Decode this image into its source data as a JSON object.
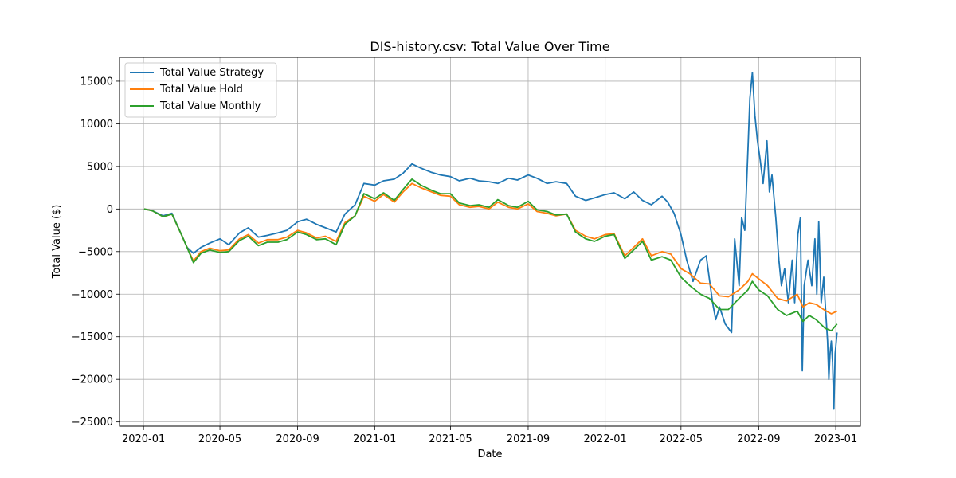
{
  "chart_data": {
    "type": "line",
    "title": "DIS-history.csv: Total Value Over Time",
    "xlabel": "Date",
    "ylabel": "Total Value ($)",
    "xlim": [
      "2019-11-24",
      "2023-02-09"
    ],
    "ylim": [
      -25500,
      17800
    ],
    "x_ticks": [
      "2020-01",
      "2020-05",
      "2020-09",
      "2021-01",
      "2021-05",
      "2021-09",
      "2022-01",
      "2022-05",
      "2022-09",
      "2023-01"
    ],
    "y_ticks": [
      -25000,
      -20000,
      -15000,
      -10000,
      -5000,
      0,
      5000,
      10000,
      15000
    ],
    "grid": true,
    "legend_position": "top-left",
    "series": [
      {
        "name": "Total Value Strategy",
        "color": "#1f77b4",
        "points": [
          [
            "2020-01-02",
            0
          ],
          [
            "2020-01-15",
            -200
          ],
          [
            "2020-02-01",
            -800
          ],
          [
            "2020-02-15",
            -500
          ],
          [
            "2020-03-01",
            -3000
          ],
          [
            "2020-03-10",
            -4500
          ],
          [
            "2020-03-20",
            -5200
          ],
          [
            "2020-04-01",
            -4500
          ],
          [
            "2020-04-15",
            -4000
          ],
          [
            "2020-05-01",
            -3500
          ],
          [
            "2020-05-15",
            -4200
          ],
          [
            "2020-06-01",
            -2800
          ],
          [
            "2020-06-15",
            -2200
          ],
          [
            "2020-07-01",
            -3300
          ],
          [
            "2020-07-15",
            -3100
          ],
          [
            "2020-08-01",
            -2800
          ],
          [
            "2020-08-15",
            -2500
          ],
          [
            "2020-09-01",
            -1500
          ],
          [
            "2020-09-15",
            -1200
          ],
          [
            "2020-10-01",
            -1800
          ],
          [
            "2020-10-15",
            -2200
          ],
          [
            "2020-11-01",
            -2700
          ],
          [
            "2020-11-15",
            -600
          ],
          [
            "2020-12-01",
            500
          ],
          [
            "2020-12-15",
            3000
          ],
          [
            "2021-01-01",
            2800
          ],
          [
            "2021-01-15",
            3300
          ],
          [
            "2021-02-01",
            3500
          ],
          [
            "2021-02-15",
            4200
          ],
          [
            "2021-03-01",
            5300
          ],
          [
            "2021-03-15",
            4800
          ],
          [
            "2021-04-01",
            4300
          ],
          [
            "2021-04-15",
            4000
          ],
          [
            "2021-05-01",
            3800
          ],
          [
            "2021-05-15",
            3300
          ],
          [
            "2021-06-01",
            3600
          ],
          [
            "2021-06-15",
            3300
          ],
          [
            "2021-07-01",
            3200
          ],
          [
            "2021-07-15",
            3000
          ],
          [
            "2021-08-01",
            3600
          ],
          [
            "2021-08-15",
            3400
          ],
          [
            "2021-09-01",
            4000
          ],
          [
            "2021-09-15",
            3600
          ],
          [
            "2021-10-01",
            3000
          ],
          [
            "2021-10-15",
            3200
          ],
          [
            "2021-11-01",
            3000
          ],
          [
            "2021-11-15",
            1500
          ],
          [
            "2021-12-01",
            1000
          ],
          [
            "2021-12-15",
            1300
          ],
          [
            "2022-01-01",
            1700
          ],
          [
            "2022-01-15",
            1900
          ],
          [
            "2022-02-01",
            1200
          ],
          [
            "2022-02-15",
            2000
          ],
          [
            "2022-03-01",
            1000
          ],
          [
            "2022-03-15",
            500
          ],
          [
            "2022-04-01",
            1500
          ],
          [
            "2022-04-10",
            800
          ],
          [
            "2022-04-20",
            -500
          ],
          [
            "2022-05-01",
            -3000
          ],
          [
            "2022-05-10",
            -6000
          ],
          [
            "2022-05-20",
            -8500
          ],
          [
            "2022-06-01",
            -6000
          ],
          [
            "2022-06-10",
            -5500
          ],
          [
            "2022-06-20",
            -11000
          ],
          [
            "2022-06-25",
            -13000
          ],
          [
            "2022-07-01",
            -11500
          ],
          [
            "2022-07-10",
            -13500
          ],
          [
            "2022-07-20",
            -14500
          ],
          [
            "2022-07-25",
            -3500
          ],
          [
            "2022-08-01",
            -9000
          ],
          [
            "2022-08-05",
            -1000
          ],
          [
            "2022-08-10",
            -2500
          ],
          [
            "2022-08-15",
            7000
          ],
          [
            "2022-08-18",
            13000
          ],
          [
            "2022-08-22",
            16000
          ],
          [
            "2022-08-26",
            11000
          ],
          [
            "2022-08-30",
            8000
          ],
          [
            "2022-09-03",
            6000
          ],
          [
            "2022-09-08",
            3000
          ],
          [
            "2022-09-14",
            8000
          ],
          [
            "2022-09-18",
            2000
          ],
          [
            "2022-09-22",
            4000
          ],
          [
            "2022-09-28",
            -1000
          ],
          [
            "2022-10-03",
            -6000
          ],
          [
            "2022-10-07",
            -9000
          ],
          [
            "2022-10-12",
            -7000
          ],
          [
            "2022-10-18",
            -11000
          ],
          [
            "2022-10-24",
            -6000
          ],
          [
            "2022-10-28",
            -11000
          ],
          [
            "2022-11-02",
            -3000
          ],
          [
            "2022-11-06",
            -1000
          ],
          [
            "2022-11-09",
            -19000
          ],
          [
            "2022-11-12",
            -9000
          ],
          [
            "2022-11-18",
            -6000
          ],
          [
            "2022-11-24",
            -9000
          ],
          [
            "2022-11-29",
            -3500
          ],
          [
            "2022-12-02",
            -10000
          ],
          [
            "2022-12-05",
            -1500
          ],
          [
            "2022-12-09",
            -11000
          ],
          [
            "2022-12-13",
            -8000
          ],
          [
            "2022-12-16",
            -12000
          ],
          [
            "2022-12-19",
            -15500
          ],
          [
            "2022-12-21",
            -20000
          ],
          [
            "2022-12-23",
            -17000
          ],
          [
            "2022-12-25",
            -15500
          ],
          [
            "2022-12-27",
            -18000
          ],
          [
            "2022-12-29",
            -23500
          ],
          [
            "2022-12-31",
            -17000
          ],
          [
            "2023-01-03",
            -14500
          ]
        ]
      },
      {
        "name": "Total Value Hold",
        "color": "#ff7f0e",
        "points": [
          [
            "2020-01-02",
            0
          ],
          [
            "2020-01-15",
            -200
          ],
          [
            "2020-02-01",
            -900
          ],
          [
            "2020-02-15",
            -600
          ],
          [
            "2020-03-01",
            -3000
          ],
          [
            "2020-03-10",
            -4500
          ],
          [
            "2020-03-20",
            -6100
          ],
          [
            "2020-04-01",
            -5000
          ],
          [
            "2020-04-15",
            -4600
          ],
          [
            "2020-05-01",
            -4900
          ],
          [
            "2020-05-15",
            -4800
          ],
          [
            "2020-06-01",
            -3500
          ],
          [
            "2020-06-15",
            -3000
          ],
          [
            "2020-07-01",
            -4000
          ],
          [
            "2020-07-15",
            -3600
          ],
          [
            "2020-08-01",
            -3600
          ],
          [
            "2020-08-15",
            -3300
          ],
          [
            "2020-09-01",
            -2500
          ],
          [
            "2020-09-15",
            -2800
          ],
          [
            "2020-10-01",
            -3400
          ],
          [
            "2020-10-15",
            -3200
          ],
          [
            "2020-11-01",
            -3800
          ],
          [
            "2020-11-15",
            -1600
          ],
          [
            "2020-12-01",
            -800
          ],
          [
            "2020-12-15",
            1500
          ],
          [
            "2021-01-01",
            900
          ],
          [
            "2021-01-15",
            1700
          ],
          [
            "2021-02-01",
            800
          ],
          [
            "2021-02-15",
            2000
          ],
          [
            "2021-03-01",
            3000
          ],
          [
            "2021-03-15",
            2500
          ],
          [
            "2021-04-01",
            2000
          ],
          [
            "2021-04-15",
            1600
          ],
          [
            "2021-05-01",
            1500
          ],
          [
            "2021-05-15",
            500
          ],
          [
            "2021-06-01",
            200
          ],
          [
            "2021-06-15",
            300
          ],
          [
            "2021-07-01",
            0
          ],
          [
            "2021-07-15",
            800
          ],
          [
            "2021-08-01",
            200
          ],
          [
            "2021-08-15",
            0
          ],
          [
            "2021-09-01",
            600
          ],
          [
            "2021-09-15",
            -300
          ],
          [
            "2021-10-01",
            -500
          ],
          [
            "2021-10-15",
            -800
          ],
          [
            "2021-11-01",
            -600
          ],
          [
            "2021-11-15",
            -2500
          ],
          [
            "2021-12-01",
            -3200
          ],
          [
            "2021-12-15",
            -3500
          ],
          [
            "2022-01-01",
            -3000
          ],
          [
            "2022-01-15",
            -2900
          ],
          [
            "2022-02-01",
            -5500
          ],
          [
            "2022-02-15",
            -4500
          ],
          [
            "2022-03-01",
            -3500
          ],
          [
            "2022-03-15",
            -5500
          ],
          [
            "2022-04-01",
            -5000
          ],
          [
            "2022-04-15",
            -5300
          ],
          [
            "2022-05-01",
            -7000
          ],
          [
            "2022-05-15",
            -7600
          ],
          [
            "2022-06-01",
            -8700
          ],
          [
            "2022-06-15",
            -8800
          ],
          [
            "2022-07-01",
            -10200
          ],
          [
            "2022-07-15",
            -10300
          ],
          [
            "2022-08-01",
            -9500
          ],
          [
            "2022-08-15",
            -8500
          ],
          [
            "2022-08-22",
            -7600
          ],
          [
            "2022-09-01",
            -8200
          ],
          [
            "2022-09-15",
            -9000
          ],
          [
            "2022-10-01",
            -10500
          ],
          [
            "2022-10-15",
            -10800
          ],
          [
            "2022-11-01",
            -10000
          ],
          [
            "2022-11-10",
            -11500
          ],
          [
            "2022-11-20",
            -11000
          ],
          [
            "2022-12-01",
            -11200
          ],
          [
            "2022-12-15",
            -11900
          ],
          [
            "2022-12-25",
            -12300
          ],
          [
            "2023-01-03",
            -12000
          ]
        ]
      },
      {
        "name": "Total Value Monthly",
        "color": "#2ca02c",
        "points": [
          [
            "2020-01-02",
            0
          ],
          [
            "2020-01-15",
            -200
          ],
          [
            "2020-02-01",
            -900
          ],
          [
            "2020-02-15",
            -600
          ],
          [
            "2020-03-01",
            -3000
          ],
          [
            "2020-03-10",
            -4500
          ],
          [
            "2020-03-20",
            -6300
          ],
          [
            "2020-04-01",
            -5200
          ],
          [
            "2020-04-15",
            -4800
          ],
          [
            "2020-05-01",
            -5100
          ],
          [
            "2020-05-15",
            -5000
          ],
          [
            "2020-06-01",
            -3700
          ],
          [
            "2020-06-15",
            -3200
          ],
          [
            "2020-07-01",
            -4300
          ],
          [
            "2020-07-15",
            -3900
          ],
          [
            "2020-08-01",
            -3900
          ],
          [
            "2020-08-15",
            -3600
          ],
          [
            "2020-09-01",
            -2700
          ],
          [
            "2020-09-15",
            -3000
          ],
          [
            "2020-10-01",
            -3600
          ],
          [
            "2020-10-15",
            -3500
          ],
          [
            "2020-11-01",
            -4200
          ],
          [
            "2020-11-15",
            -1800
          ],
          [
            "2020-12-01",
            -800
          ],
          [
            "2020-12-15",
            1800
          ],
          [
            "2021-01-01",
            1200
          ],
          [
            "2021-01-15",
            1900
          ],
          [
            "2021-02-01",
            1000
          ],
          [
            "2021-02-15",
            2300
          ],
          [
            "2021-03-01",
            3500
          ],
          [
            "2021-03-15",
            2800
          ],
          [
            "2021-04-01",
            2200
          ],
          [
            "2021-04-15",
            1800
          ],
          [
            "2021-05-01",
            1800
          ],
          [
            "2021-05-15",
            700
          ],
          [
            "2021-06-01",
            400
          ],
          [
            "2021-06-15",
            500
          ],
          [
            "2021-07-01",
            200
          ],
          [
            "2021-07-15",
            1100
          ],
          [
            "2021-08-01",
            400
          ],
          [
            "2021-08-15",
            200
          ],
          [
            "2021-09-01",
            900
          ],
          [
            "2021-09-15",
            -100
          ],
          [
            "2021-10-01",
            -300
          ],
          [
            "2021-10-15",
            -700
          ],
          [
            "2021-11-01",
            -600
          ],
          [
            "2021-11-15",
            -2700
          ],
          [
            "2021-12-01",
            -3500
          ],
          [
            "2021-12-15",
            -3800
          ],
          [
            "2022-01-01",
            -3200
          ],
          [
            "2022-01-15",
            -3000
          ],
          [
            "2022-02-01",
            -5800
          ],
          [
            "2022-02-15",
            -4800
          ],
          [
            "2022-03-01",
            -3800
          ],
          [
            "2022-03-15",
            -6000
          ],
          [
            "2022-04-01",
            -5600
          ],
          [
            "2022-04-15",
            -6000
          ],
          [
            "2022-05-01",
            -8000
          ],
          [
            "2022-05-15",
            -9000
          ],
          [
            "2022-06-01",
            -10000
          ],
          [
            "2022-06-15",
            -10500
          ],
          [
            "2022-07-01",
            -11800
          ],
          [
            "2022-07-15",
            -11800
          ],
          [
            "2022-08-01",
            -10500
          ],
          [
            "2022-08-15",
            -9500
          ],
          [
            "2022-08-22",
            -8500
          ],
          [
            "2022-09-01",
            -9500
          ],
          [
            "2022-09-15",
            -10200
          ],
          [
            "2022-10-01",
            -11800
          ],
          [
            "2022-10-15",
            -12500
          ],
          [
            "2022-11-01",
            -12000
          ],
          [
            "2022-11-10",
            -13200
          ],
          [
            "2022-11-20",
            -12500
          ],
          [
            "2022-12-01",
            -13000
          ],
          [
            "2022-12-15",
            -14000
          ],
          [
            "2022-12-25",
            -14300
          ],
          [
            "2023-01-03",
            -13500
          ]
        ]
      }
    ]
  }
}
